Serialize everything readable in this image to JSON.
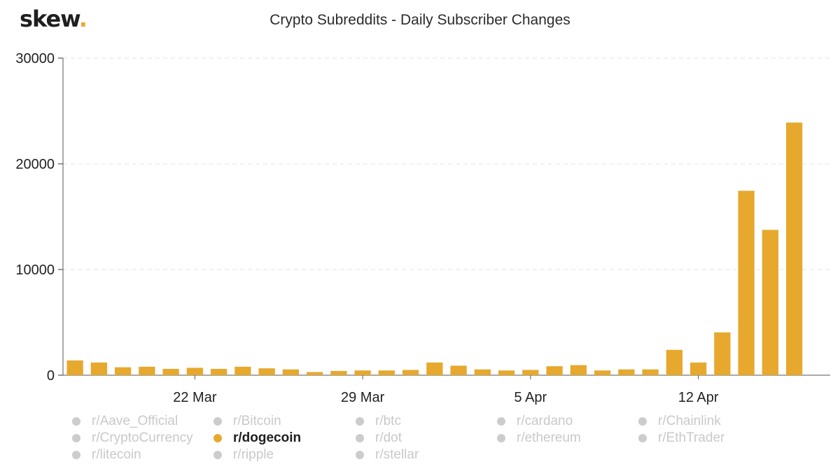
{
  "logo": {
    "text": "skew",
    "dot": "."
  },
  "chart_data": {
    "type": "bar",
    "title": "Crypto Subreddits - Daily Subscriber Changes",
    "xlabel": "",
    "ylabel": "",
    "ylim": [
      0,
      30000
    ],
    "yticks": [
      0,
      10000,
      20000,
      30000
    ],
    "grid": true,
    "legend_position": "bottom",
    "bar_color": "#e6a92e",
    "x": [
      "2021-03-17",
      "2021-03-18",
      "2021-03-19",
      "2021-03-20",
      "2021-03-21",
      "2021-03-22",
      "2021-03-23",
      "2021-03-24",
      "2021-03-25",
      "2021-03-26",
      "2021-03-27",
      "2021-03-28",
      "2021-03-29",
      "2021-03-30",
      "2021-03-31",
      "2021-04-01",
      "2021-04-02",
      "2021-04-03",
      "2021-04-04",
      "2021-04-05",
      "2021-04-06",
      "2021-04-07",
      "2021-04-08",
      "2021-04-09",
      "2021-04-10",
      "2021-04-11",
      "2021-04-12",
      "2021-04-13",
      "2021-04-14",
      "2021-04-15",
      "2021-04-16",
      "2021-04-17"
    ],
    "x_tick_labels": [
      {
        "date": "2021-03-22",
        "label": "22 Mar"
      },
      {
        "date": "2021-03-29",
        "label": "29 Mar"
      },
      {
        "date": "2021-04-05",
        "label": "5 Apr"
      },
      {
        "date": "2021-04-12",
        "label": "12 Apr"
      }
    ],
    "series": [
      {
        "name": "r/dogecoin",
        "values": [
          1400,
          1200,
          750,
          800,
          600,
          700,
          600,
          800,
          650,
          550,
          300,
          400,
          450,
          450,
          500,
          1200,
          900,
          550,
          450,
          500,
          850,
          950,
          450,
          550,
          550,
          2400,
          1200,
          4050,
          17450,
          13750,
          23900,
          0
        ]
      }
    ]
  },
  "legend": [
    {
      "label": "r/Aave_Official",
      "active": false
    },
    {
      "label": "r/Bitcoin",
      "active": false
    },
    {
      "label": "r/btc",
      "active": false
    },
    {
      "label": "r/cardano",
      "active": false
    },
    {
      "label": "r/Chainlink",
      "active": false
    },
    {
      "label": "r/CryptoCurrency",
      "active": false
    },
    {
      "label": "r/dogecoin",
      "active": true
    },
    {
      "label": "r/dot",
      "active": false
    },
    {
      "label": "r/ethereum",
      "active": false
    },
    {
      "label": "r/EthTrader",
      "active": false
    },
    {
      "label": "r/litecoin",
      "active": false
    },
    {
      "label": "r/ripple",
      "active": false
    },
    {
      "label": "r/stellar",
      "active": false
    }
  ]
}
